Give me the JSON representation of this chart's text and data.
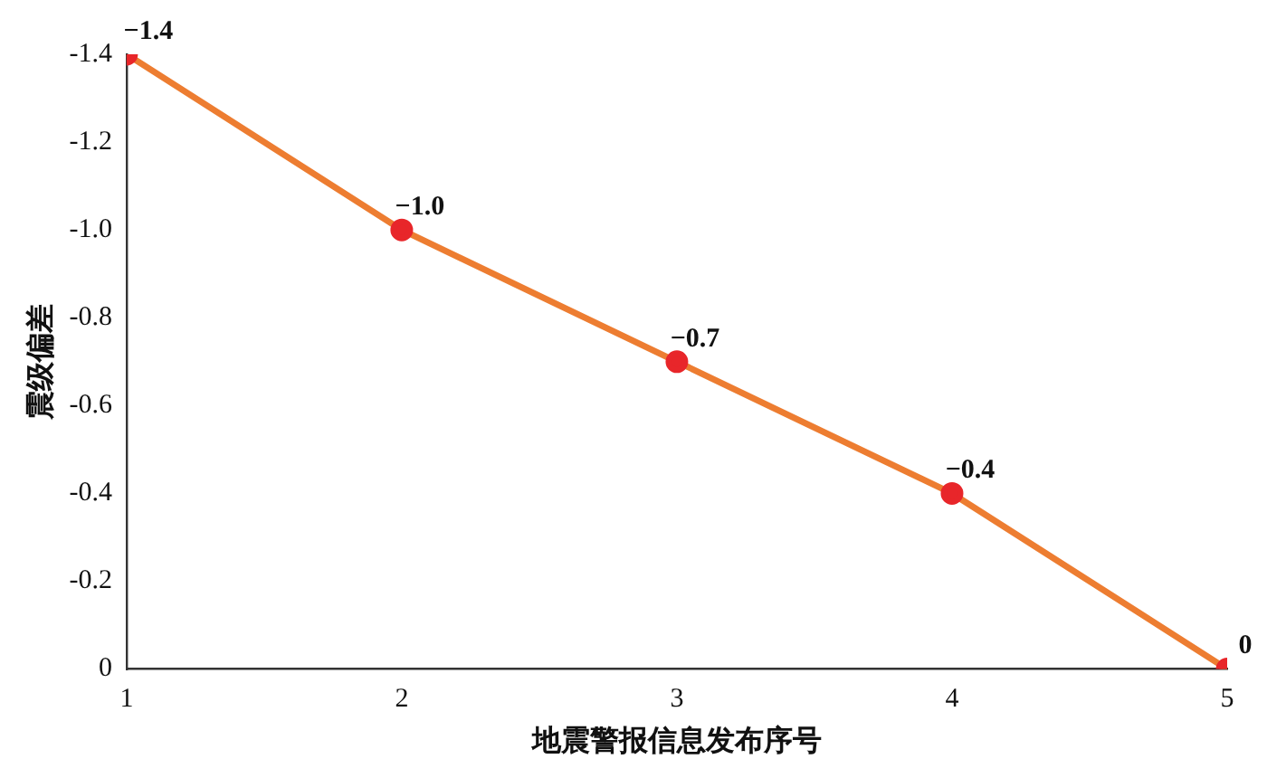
{
  "chart_data": {
    "type": "line",
    "xlabel": "地震警报信息发布序号",
    "ylabel": "震级偏差",
    "x": [
      1,
      2,
      3,
      4,
      5
    ],
    "series": [
      {
        "color": "#ed7d31",
        "colors": [
          "#e8262a",
          "#e8262a",
          "#e8262a",
          "#e8262a",
          "#e8262a"
        ],
        "values": [
          -1.4,
          -1.0,
          -0.7,
          -0.4,
          0
        ],
        "value_labels": [
          "−1.4",
          "−1.0",
          "−0.7",
          "−0.4",
          "0"
        ]
      }
    ],
    "xlim": [
      1,
      5
    ],
    "xticks": [
      1,
      2,
      3,
      4,
      5
    ],
    "ylim": [
      0,
      -1.4
    ],
    "yticks": [
      {
        "value": -1.4,
        "label": "-1.4"
      },
      {
        "value": -1.2,
        "label": "-1.2"
      },
      {
        "value": -1,
        "label": "-1.0"
      },
      {
        "value": -0.8,
        "label": "-0.8"
      },
      {
        "value": -0.6,
        "label": "-0.6"
      },
      {
        "value": -0.4,
        "label": "-0.4"
      },
      {
        "value": -0.2,
        "label": "-0.2"
      },
      {
        "value": 0,
        "label": "0"
      }
    ],
    "grid": false,
    "legend": false,
    "marker": "circle",
    "line_style": "solid"
  }
}
